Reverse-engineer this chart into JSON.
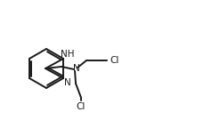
{
  "bg_color": "#ffffff",
  "line_color": "#1a1a1a",
  "line_width": 1.4,
  "font_size": 7.5,
  "atoms": {
    "NH_label": "NH",
    "N_label": "N",
    "N_amine_label": "N",
    "Cl1_label": "Cl",
    "Cl2_label": "Cl"
  }
}
